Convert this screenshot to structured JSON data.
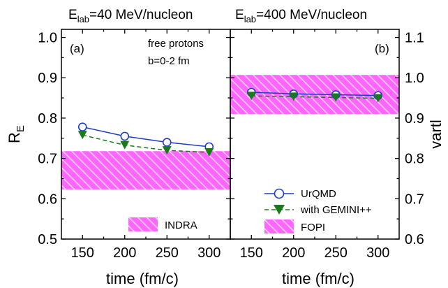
{
  "chart_data": [
    {
      "type": "line",
      "panel_title": {
        "base": "E",
        "sub": "lab",
        "rest": "=40 MeV/nucleon"
      },
      "tag": "(a)",
      "annotations": [
        "free protons",
        "b=0-2 fm"
      ],
      "xlabel": "time (fm/c)",
      "ylabel": {
        "base": "R",
        "sub": "E"
      },
      "x": [
        150,
        200,
        250,
        300
      ],
      "xticks": [
        "150",
        "200",
        "250",
        "300"
      ],
      "xlim": [
        125,
        325
      ],
      "ylim": [
        0.5,
        1.02
      ],
      "yticks": [
        "0.5",
        "0.6",
        "0.7",
        "0.8",
        "0.9",
        "1.0"
      ],
      "series": [
        {
          "name": "UrQMD",
          "values": [
            0.778,
            0.755,
            0.74,
            0.729
          ],
          "color": "#1a3dcc",
          "marker": "open-circle",
          "dash": "solid"
        },
        {
          "name": "with GEMINI++",
          "values": [
            0.758,
            0.733,
            0.72,
            0.715
          ],
          "color": "#1a7a1a",
          "marker": "filled-down-triangle",
          "dash": "dashed"
        }
      ],
      "band": {
        "name": "INDRA",
        "low": 0.623,
        "high": 0.718,
        "color": "#ff66ff"
      }
    },
    {
      "type": "line",
      "panel_title": {
        "base": "E",
        "sub": "lab",
        "rest": "=400 MeV/nucleon"
      },
      "tag": "(b)",
      "xlabel": "time (fm/c)",
      "ylabel": "vartl",
      "x": [
        150,
        200,
        250,
        300
      ],
      "xticks": [
        "150",
        "200",
        "250",
        "300"
      ],
      "xlim": [
        125,
        325
      ],
      "ylim": [
        0.6,
        1.12
      ],
      "yticks": [
        "0.6",
        "0.7",
        "0.8",
        "0.9",
        "1.0",
        "1.1"
      ],
      "series": [
        {
          "name": "UrQMD",
          "values": [
            0.964,
            0.96,
            0.958,
            0.956
          ],
          "color": "#1a3dcc",
          "marker": "open-circle",
          "dash": "solid"
        },
        {
          "name": "with GEMINI++",
          "values": [
            0.955,
            0.953,
            0.951,
            0.949
          ],
          "color": "#1a7a1a",
          "marker": "filled-down-triangle",
          "dash": "dashed"
        }
      ],
      "band": {
        "name": "FOPI",
        "low": 0.91,
        "high": 1.007,
        "color": "#ff66ff"
      }
    }
  ]
}
